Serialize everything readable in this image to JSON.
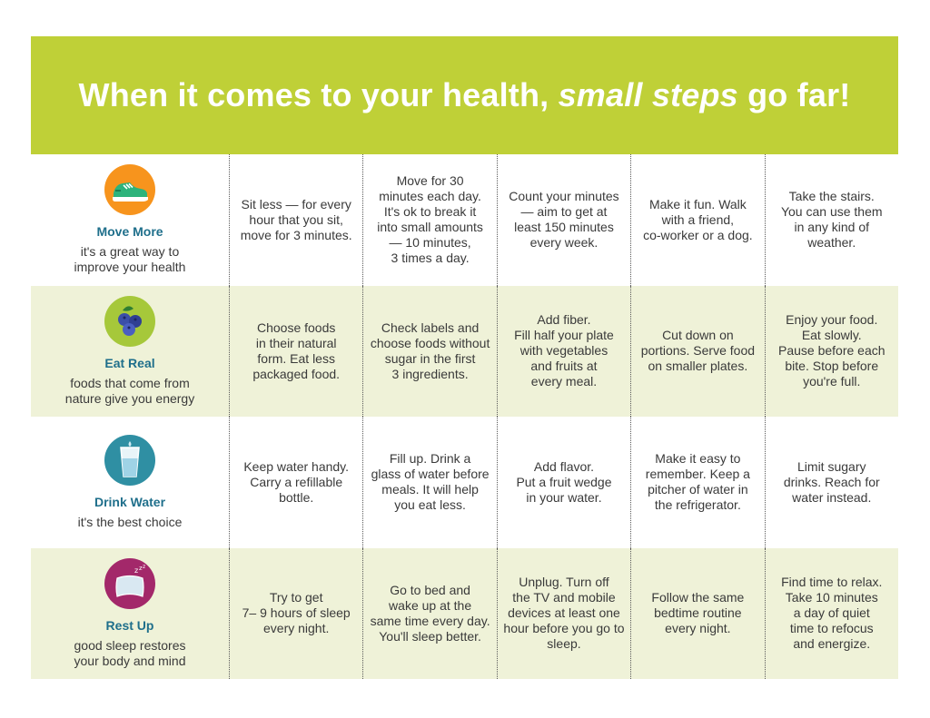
{
  "header": {
    "title_start": "When it comes to your health, ",
    "title_em": "small steps",
    "title_end": " go far!"
  },
  "rows": [
    {
      "icon": "sneaker-icon",
      "title": "Move More",
      "subtitle": "it's a great way to\nimprove your health",
      "tips": [
        "Sit less — for every\nhour that you sit,\nmove for 3 minutes.",
        "Move for 30\nminutes each day.\nIt's ok to break it\ninto small amounts\n— 10 minutes,\n3 times a day.",
        "Count your minutes\n— aim to get at\nleast 150 minutes\nevery week.",
        "Make it fun. Walk\nwith a friend,\nco-worker or a dog.",
        "Take the stairs.\nYou can use them\nin any kind of\nweather."
      ]
    },
    {
      "icon": "blueberries-icon",
      "title": "Eat Real",
      "subtitle": "foods that come from\nnature give you energy",
      "tips": [
        "Choose foods\nin their natural\nform. Eat less\npackaged food.",
        "Check labels and\nchoose foods without\nsugar in the first\n3 ingredients.",
        "Add fiber.\nFill half your plate\nwith vegetables\nand fruits at\nevery meal.",
        "Cut down on\nportions. Serve food\non smaller plates.",
        "Enjoy your food.\nEat slowly.\nPause before each\nbite. Stop before\nyou're full."
      ]
    },
    {
      "icon": "water-glass-icon",
      "title": "Drink Water",
      "subtitle": "it's the best choice",
      "tips": [
        "Keep water handy.\nCarry a refillable\nbottle.",
        "Fill up. Drink a\nglass of water before\nmeals. It will help\nyou eat less.",
        "Add flavor.\nPut a fruit wedge\nin your water.",
        "Make it easy to\nremember. Keep a\npitcher of water in\nthe refrigerator.",
        "Limit sugary\ndrinks. Reach for\nwater instead."
      ]
    },
    {
      "icon": "pillow-icon",
      "title": "Rest Up",
      "subtitle": "good sleep restores\nyour body and mind",
      "tips": [
        "Try to get\n7– 9 hours of sleep\nevery night.",
        "Go to bed and\nwake up at the\nsame time every day.\nYou'll sleep better.",
        "Unplug. Turn off\nthe TV and mobile\ndevices at least one\nhour before you go to\nsleep.",
        "Follow the same\nbedtime routine\nevery night.",
        "Find time to relax.\nTake 10 minutes\na day of quiet\ntime to refocus\nand energize."
      ]
    }
  ],
  "colors": {
    "header": "#bfd037",
    "shaded_row": "#eff2d8",
    "category_title": "#1f6f8b",
    "move_icon_bg": "#f7941d",
    "eat_icon_bg": "#a6c83a",
    "drink_icon_bg": "#2f8fa3",
    "rest_icon_bg": "#a3286a"
  }
}
